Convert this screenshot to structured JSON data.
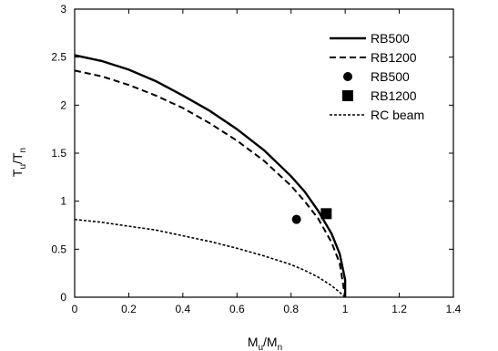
{
  "chart_data": {
    "type": "line",
    "xlabel": "M_u/M_n",
    "ylabel": "T_u/T_n",
    "xlim": [
      0,
      1.4
    ],
    "ylim": [
      0,
      3
    ],
    "x_ticks": [
      "0",
      "0.2",
      "0.4",
      "0.6",
      "0.8",
      "1",
      "1.2",
      "1.4"
    ],
    "y_ticks": [
      "0",
      "0.5",
      "1",
      "1.5",
      "2",
      "2.5",
      "3"
    ],
    "grid": false,
    "legend_position": "top-right",
    "series": [
      {
        "name": "RB500",
        "kind": "line",
        "style": "solid",
        "color": "#000000",
        "x": [
          0,
          0.1,
          0.2,
          0.3,
          0.4,
          0.5,
          0.6,
          0.7,
          0.8,
          0.85,
          0.9,
          0.95,
          0.98,
          1.0,
          1.0
        ],
        "y": [
          2.52,
          2.46,
          2.37,
          2.25,
          2.1,
          1.94,
          1.75,
          1.53,
          1.26,
          1.1,
          0.9,
          0.66,
          0.45,
          0.18,
          0.0
        ]
      },
      {
        "name": "RB1200",
        "kind": "line",
        "style": "dashed",
        "color": "#000000",
        "x": [
          0,
          0.1,
          0.2,
          0.3,
          0.4,
          0.5,
          0.6,
          0.7,
          0.8,
          0.85,
          0.9,
          0.95,
          0.98,
          1.0
        ],
        "y": [
          2.36,
          2.3,
          2.21,
          2.1,
          1.97,
          1.81,
          1.63,
          1.42,
          1.16,
          1.0,
          0.82,
          0.57,
          0.35,
          0.0
        ]
      },
      {
        "name": "RB500",
        "kind": "scatter",
        "marker": "circle",
        "color": "#000000",
        "x": [
          0.82
        ],
        "y": [
          0.81
        ]
      },
      {
        "name": "RB1200",
        "kind": "scatter",
        "marker": "square",
        "color": "#000000",
        "x": [
          0.93
        ],
        "y": [
          0.87
        ]
      },
      {
        "name": "RC beam",
        "kind": "line",
        "style": "short-dashed",
        "color": "#000000",
        "x": [
          0,
          0.1,
          0.2,
          0.3,
          0.4,
          0.5,
          0.6,
          0.7,
          0.8,
          0.85,
          0.9,
          0.95,
          0.98,
          1.0
        ],
        "y": [
          0.81,
          0.78,
          0.74,
          0.7,
          0.64,
          0.58,
          0.51,
          0.43,
          0.34,
          0.28,
          0.21,
          0.12,
          0.05,
          0.0
        ]
      }
    ]
  }
}
